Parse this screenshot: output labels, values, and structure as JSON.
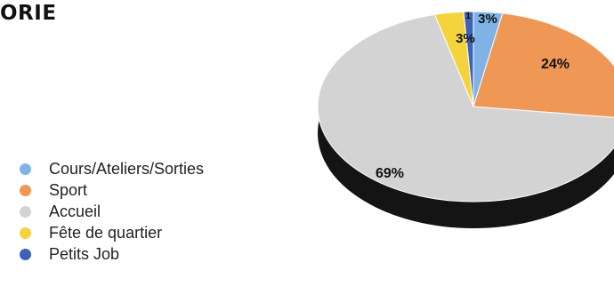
{
  "chart_data": {
    "type": "pie",
    "title": "ORIE",
    "categories": [
      "Cours/Ateliers/Sorties",
      "Sport",
      "Accueil",
      "Fête de quartier",
      "Petits Job"
    ],
    "values": [
      3,
      24,
      69,
      3,
      1
    ],
    "data_labels": [
      "3%",
      "24%",
      "69%",
      "3%",
      "1"
    ],
    "colors": [
      "#7fb3e6",
      "#ef9755",
      "#d3d3d3",
      "#f5d33d",
      "#3d63b4"
    ],
    "legend_position": "left",
    "style": "3d-tilted"
  }
}
